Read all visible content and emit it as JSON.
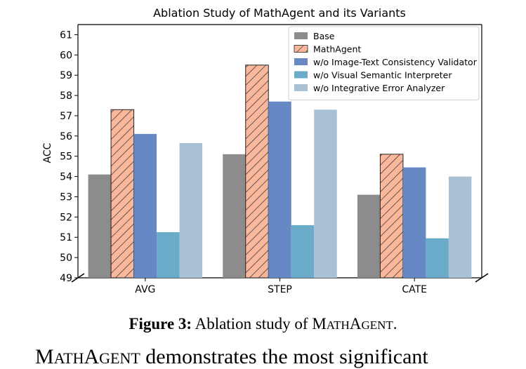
{
  "chart_data": {
    "type": "bar",
    "title": "Ablation Study of MathAgent and its Variants",
    "xlabel": "",
    "ylabel": "ACC",
    "ylim": [
      49,
      61.5
    ],
    "yticks": [
      49,
      50,
      51,
      52,
      53,
      54,
      55,
      56,
      57,
      58,
      59,
      60,
      61
    ],
    "categories": [
      "AVG",
      "STEP",
      "CATE"
    ],
    "legend_position": "top-right",
    "grid": false,
    "series": [
      {
        "name": "Base",
        "color": "#8c8c8c",
        "hatch": false,
        "values": [
          54.1,
          55.1,
          53.1
        ]
      },
      {
        "name": "MathAgent",
        "color": "#f9b79b",
        "hatch": true,
        "values": [
          57.3,
          59.5,
          55.1
        ]
      },
      {
        "name": "w/o Image-Text Consistency Validator",
        "color": "#6689c6",
        "hatch": false,
        "values": [
          56.1,
          57.7,
          54.45
        ]
      },
      {
        "name": "w/o Visual Semantic Interpreter",
        "color": "#6aabc9",
        "hatch": false,
        "values": [
          51.25,
          51.6,
          50.95
        ]
      },
      {
        "name": "w/o Integrative Error Analyzer",
        "color": "#a9c1d4",
        "hatch": false,
        "values": [
          55.65,
          57.3,
          54.0
        ]
      }
    ]
  },
  "caption": {
    "label": "Figure 3:",
    "text": "Ablation study of",
    "name_first": "M",
    "name_rest1": "ATH",
    "name_mid": "A",
    "name_rest2": "GENT",
    "period": "."
  },
  "cutoff_line": {
    "first": "M",
    "rest1": "ATH",
    "mid": "A",
    "rest2": "GENT",
    "text": " demonstrates the most significant"
  }
}
